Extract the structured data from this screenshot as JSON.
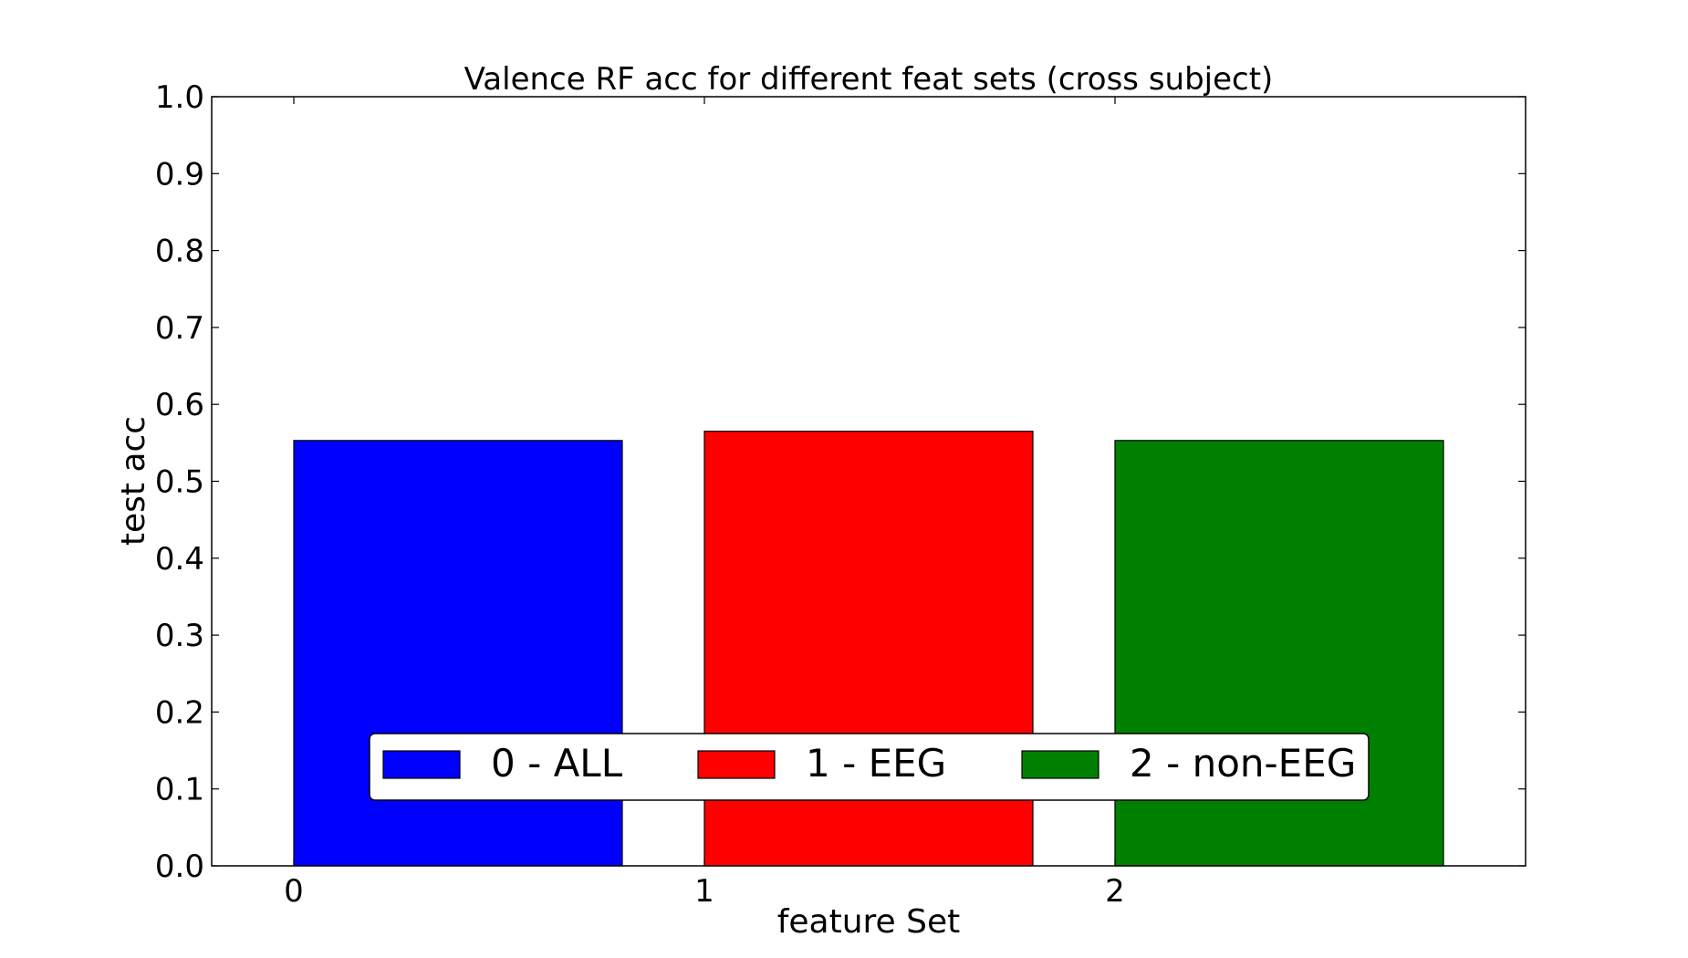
{
  "chart_data": {
    "type": "bar",
    "title": "Valence RF acc for different feat sets (cross subject)",
    "xlabel": "feature Set",
    "ylabel": "test acc",
    "categories": [
      "0",
      "1",
      "2"
    ],
    "values": [
      0.553,
      0.565,
      0.553
    ],
    "bar_colors": [
      "#0000ff",
      "#ff0000",
      "#008000"
    ],
    "xlim": [
      -0.2,
      3.0
    ],
    "ylim": [
      0.0,
      1.0
    ],
    "yticks": [
      "0.0",
      "0.1",
      "0.2",
      "0.3",
      "0.4",
      "0.5",
      "0.6",
      "0.7",
      "0.8",
      "0.9",
      "1.0"
    ],
    "xticks": [
      "0",
      "1",
      "2"
    ],
    "grid": false,
    "legend": {
      "placement": "lower-center",
      "entries": [
        {
          "label": "0 - ALL",
          "color": "#0000ff"
        },
        {
          "label": "1 - EEG",
          "color": "#ff0000"
        },
        {
          "label": "2 - non-EEG",
          "color": "#008000"
        }
      ]
    }
  }
}
